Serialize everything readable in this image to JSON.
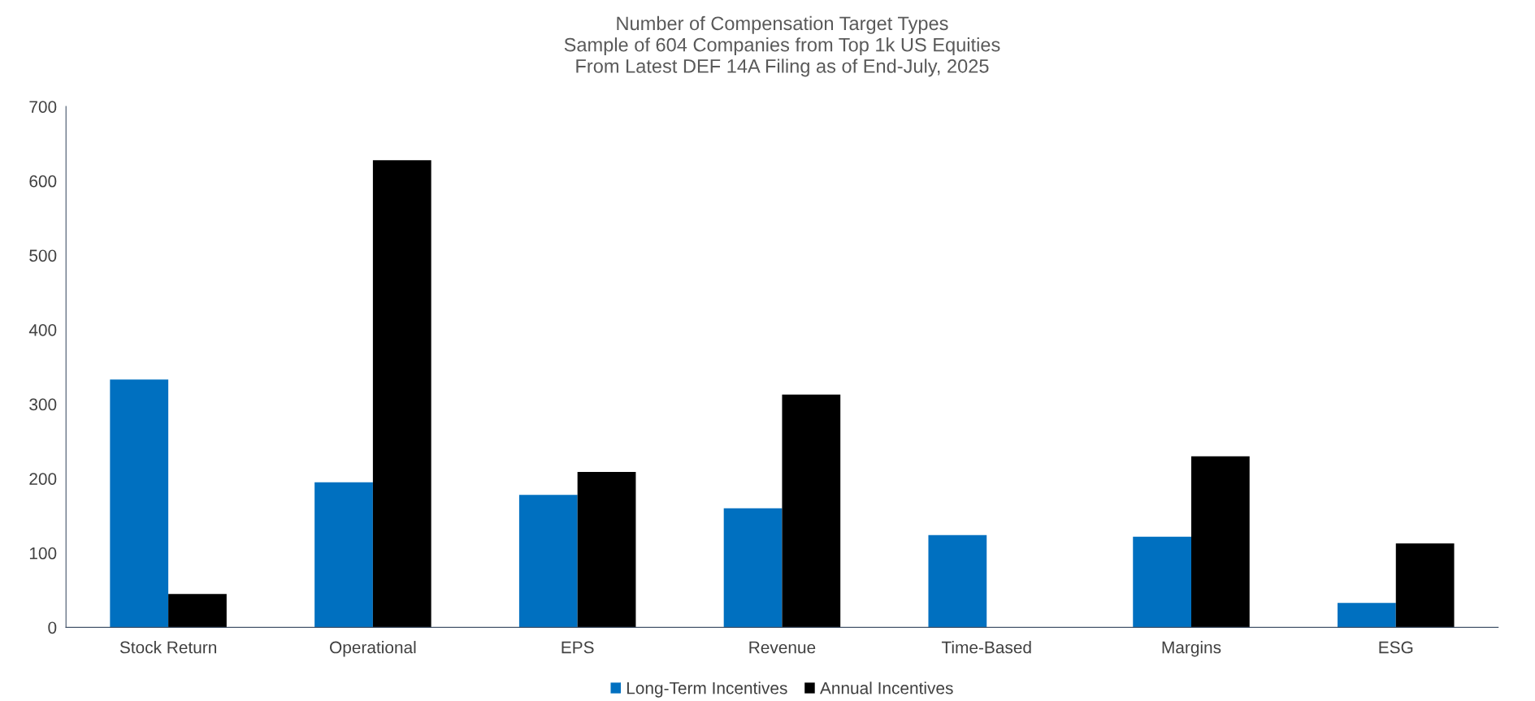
{
  "chart_data": {
    "type": "bar",
    "title": "Number of Compensation Target Types\nSample of 604 Companies from Top 1k US Equities\nFrom Latest DEF 14A Filing as of End-July, 2025",
    "categories": [
      "Stock Return",
      "Operational",
      "EPS",
      "Revenue",
      "Time-Based",
      "Margins",
      "ESG"
    ],
    "series": [
      {
        "name": "Long-Term Incentives",
        "color": "#0070c0",
        "values": [
          333,
          195,
          178,
          160,
          124,
          122,
          33
        ]
      },
      {
        "name": "Annual Incentives",
        "color": "#000000",
        "values": [
          45,
          628,
          209,
          313,
          null,
          230,
          113
        ]
      }
    ],
    "ylim": [
      0,
      700
    ],
    "yticks": [
      0,
      100,
      200,
      300,
      400,
      500,
      600,
      700
    ],
    "grid": false,
    "legend": "bottom"
  }
}
